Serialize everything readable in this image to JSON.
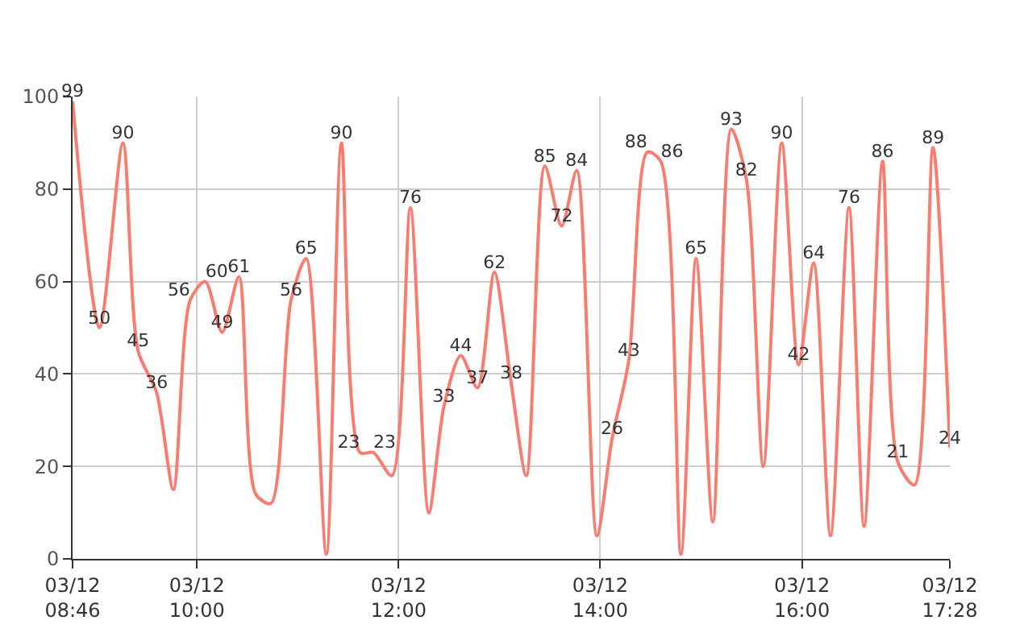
{
  "chart_data": {
    "type": "line",
    "x": [
      "--03-12T08:46",
      "--03-12T09:02",
      "--03-12T09:16",
      "--03-12T09:25",
      "--03-12T09:36",
      "--03-12T09:46",
      "--03-12T09:56",
      "--03-12T10:05",
      "--03-12T10:15",
      "--03-12T10:25",
      "--03-12T10:35",
      "--03-12T10:44",
      "--03-12T10:56",
      "--03-12T11:05",
      "--03-12T11:17",
      "--03-12T11:26",
      "--03-12T11:37",
      "--03-12T11:45",
      "--03-12T11:56",
      "--03-12T12:07",
      "--03-12T12:18",
      "--03-12T12:27",
      "--03-12T12:37",
      "--03-12T12:47",
      "--03-12T12:57",
      "--03-12T13:07",
      "--03-12T13:16",
      "--03-12T13:27",
      "--03-12T13:37",
      "--03-12T13:46",
      "--03-12T13:58",
      "--03-12T14:07",
      "--03-12T14:17",
      "--03-12T14:28",
      "--03-12T14:36",
      "--03-12T14:48",
      "--03-12T14:57",
      "--03-12T15:07",
      "--03-12T15:18",
      "--03-12T15:27",
      "--03-12T15:37",
      "--03-12T15:48",
      "--03-12T15:58",
      "--03-12T16:07",
      "--03-12T16:17",
      "--03-12T16:28",
      "--03-12T16:37",
      "--03-12T16:48",
      "--03-12T16:57",
      "--03-12T17:07",
      "--03-12T17:18",
      "--03-12T17:28"
    ],
    "series": [
      {
        "color": "#f87d70",
        "values": [
          99,
          50,
          90,
          45,
          36,
          15,
          56,
          60,
          49,
          61,
          14,
          12,
          56,
          65,
          1,
          90,
          23,
          23,
          18,
          76,
          10,
          33,
          44,
          37,
          62,
          38,
          18,
          85,
          72,
          84,
          5,
          26,
          43,
          88,
          86,
          1,
          65,
          8,
          93,
          82,
          20,
          90,
          42,
          64,
          5,
          76,
          7,
          86,
          21,
          16,
          89,
          24
        ],
        "value_labels": [
          "99",
          "50",
          "90",
          "45",
          "36",
          null,
          "56",
          "60",
          "49",
          "61",
          null,
          null,
          "56",
          "65",
          null,
          "90",
          "23",
          "23",
          null,
          "76",
          null,
          "33",
          "44",
          "37",
          "62",
          "38",
          null,
          "85",
          "72",
          "84",
          null,
          "26",
          "43",
          "88",
          "86",
          null,
          "65",
          null,
          "93",
          "82",
          null,
          "90",
          "42",
          "64",
          null,
          "76",
          null,
          "86",
          "21",
          null,
          "89",
          "24"
        ]
      }
    ],
    "xlim": [
      "--03-12T08:46",
      "--03-12T17:28"
    ],
    "xticks": [
      {
        "value": "--03-12T08:46",
        "label": "03/12\n08:46"
      },
      {
        "value": "--03-12T10:00",
        "label": "03/12\n10:00"
      },
      {
        "value": "--03-12T12:00",
        "label": "03/12\n12:00"
      },
      {
        "value": "--03-12T14:00",
        "label": "03/12\n14:00"
      },
      {
        "value": "--03-12T16:00",
        "label": "03/12\n16:00"
      },
      {
        "value": "--03-12T17:28",
        "label": "03/12\n17:28"
      }
    ],
    "ylim": [
      0,
      100
    ],
    "yticks": [
      0,
      20,
      40,
      60,
      80,
      100
    ],
    "grid": true,
    "marker": "none",
    "line_style": "solid"
  }
}
